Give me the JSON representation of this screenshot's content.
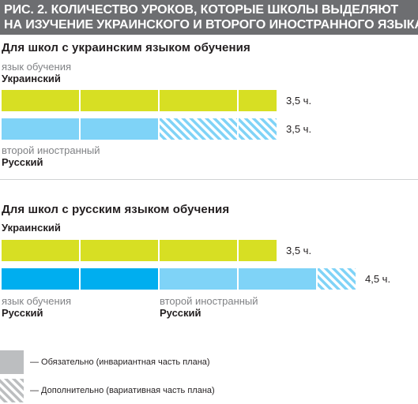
{
  "header": {
    "line1": "РИС. 2. КОЛИЧЕСТВО УРОКОВ, КОТОРЫЕ ШКОЛЫ ВЫДЕЛЯЮТ",
    "line2": "НА ИЗУЧЕНИЕ УКРАИНСКОГО И ВТОРОГО ИНОСТРАННОГО ЯЗЫКА"
  },
  "colors": {
    "header_bg": "#6d6e71",
    "ukrainian": "#d7df23",
    "russian_main": "#00aeef",
    "russian_foreign": "#7fd3f7",
    "legend_grey": "#bcbec0"
  },
  "chart_data": {
    "type": "bar",
    "unit": "ч.",
    "segment_hours": 1,
    "panels": [
      {
        "title": "Для школ с украинским языком обучения",
        "rows": [
          {
            "pre_label": "язык обучения",
            "label": "Украинский",
            "total": 3.5,
            "total_label": "3,5 ч.",
            "segments": [
              {
                "hours": 1,
                "color": "#d7df23",
                "hatched": false
              },
              {
                "hours": 1,
                "color": "#d7df23",
                "hatched": false
              },
              {
                "hours": 1,
                "color": "#d7df23",
                "hatched": false
              },
              {
                "hours": 0.5,
                "color": "#d7df23",
                "hatched": false
              }
            ]
          },
          {
            "post_label": "второй иностранный",
            "label": "Русский",
            "total": 3.5,
            "total_label": "3,5 ч.",
            "segments": [
              {
                "hours": 1,
                "color": "#7fd3f7",
                "hatched": false
              },
              {
                "hours": 1,
                "color": "#7fd3f7",
                "hatched": false
              },
              {
                "hours": 1,
                "color": "#7fd3f7",
                "hatched": true
              },
              {
                "hours": 0.5,
                "color": "#7fd3f7",
                "hatched": true
              }
            ]
          }
        ]
      },
      {
        "title": "Для школ с русским языком обучения",
        "rows": [
          {
            "label": "Украинский",
            "total": 3.5,
            "total_label": "3,5 ч.",
            "segments": [
              {
                "hours": 1,
                "color": "#d7df23",
                "hatched": false
              },
              {
                "hours": 1,
                "color": "#d7df23",
                "hatched": false
              },
              {
                "hours": 1,
                "color": "#d7df23",
                "hatched": false
              },
              {
                "hours": 0.5,
                "color": "#d7df23",
                "hatched": false
              }
            ]
          },
          {
            "total": 4.5,
            "total_label": "4,5 ч.",
            "segments": [
              {
                "hours": 1,
                "color": "#00aeef",
                "hatched": false
              },
              {
                "hours": 1,
                "color": "#00aeef",
                "hatched": false
              },
              {
                "hours": 1,
                "color": "#7fd3f7",
                "hatched": false
              },
              {
                "hours": 1,
                "color": "#7fd3f7",
                "hatched": false
              },
              {
                "hours": 0.5,
                "color": "#7fd3f7",
                "hatched": true
              }
            ],
            "sublabels": [
              {
                "top": "язык обучения",
                "bottom": "Русский"
              },
              {
                "top": "второй иностранный",
                "bottom": "Русский"
              }
            ]
          }
        ]
      }
    ],
    "legend": [
      {
        "label": "— Обязательно  (инвариантная часть плана)",
        "hatched": false
      },
      {
        "label": "— Дополнительно (вариативная часть плана)",
        "hatched": true
      }
    ]
  }
}
